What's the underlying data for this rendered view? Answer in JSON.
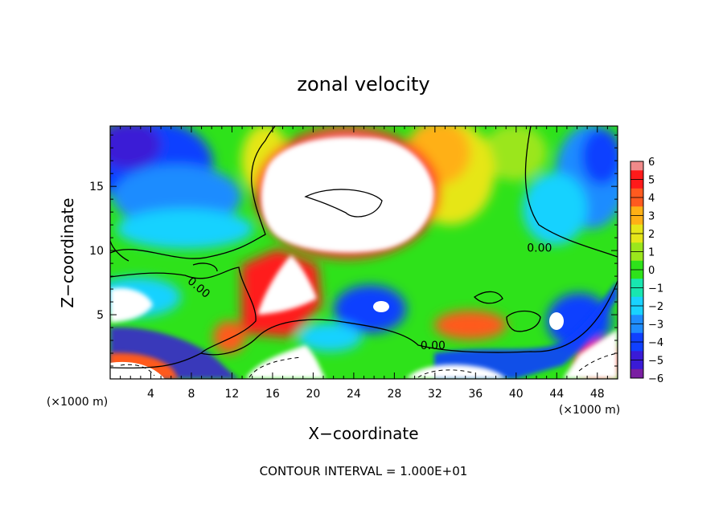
{
  "chart_data": {
    "type": "heatmap",
    "title": "zonal velocity",
    "xlabel": "X−coordinate",
    "ylabel": "Z−coordinate",
    "x_unit_left": "(×1000 m)",
    "x_unit_right": "(×1000 m)",
    "x_ticks": [
      "4",
      "8",
      "12",
      "16",
      "20",
      "24",
      "28",
      "32",
      "36",
      "40",
      "44",
      "48"
    ],
    "y_ticks": [
      "5",
      "10",
      "15"
    ],
    "xlim": [
      0,
      50
    ],
    "ylim": [
      0,
      19.7
    ],
    "colorbar_ticks": [
      "6",
      "5",
      "4",
      "3",
      "2",
      "1",
      "0",
      "−1",
      "−2",
      "−3",
      "−4",
      "−5",
      "−6"
    ],
    "colorbar_range": [
      -6,
      6
    ],
    "contour_labels": [
      {
        "text": "0.00",
        "x": 42.3,
        "y": 9.9
      },
      {
        "text": "0.00",
        "x": 8.5,
        "y": 6.9
      },
      {
        "text": "0.00",
        "x": 31.8,
        "y": 2.3
      }
    ],
    "footer": "CONTOUR INTERVAL = 1.000E+01",
    "colors": {
      "neg6": "#7a1fa2",
      "neg5": "#3a1bd6",
      "neg4": "#1040ff",
      "neg3": "#1f8cff",
      "neg2": "#19d2ff",
      "neg1": "#18e6b0",
      "zero": "#2ee21a",
      "pos1": "#9be61c",
      "pos2": "#e6e619",
      "pos3": "#ffb015",
      "pos4": "#ff5a1f",
      "pos5": "#ff1a1a",
      "pos6": "#f08a8a"
    }
  }
}
